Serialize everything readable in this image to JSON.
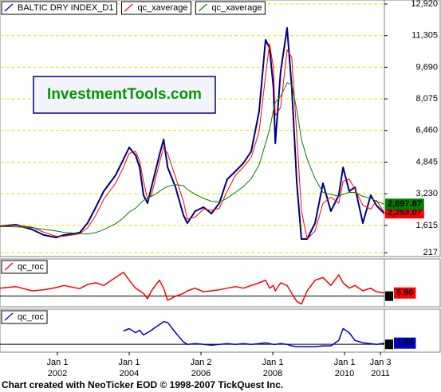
{
  "chart_data": [
    {
      "type": "line",
      "xlim": [
        2000.4,
        2011.11
      ],
      "ylim": [
        25,
        13123
      ],
      "grid": true,
      "tick_style": "text",
      "yticks": [
        {
          "value": 12920,
          "label": "12,920"
        },
        {
          "value": 11305,
          "label": "11,305"
        },
        {
          "value": 9690,
          "label": "9,690"
        },
        {
          "value": 8075,
          "label": "8,075"
        },
        {
          "value": 6460,
          "label": "6,460"
        },
        {
          "value": 4845,
          "label": "4,845"
        },
        {
          "value": 3230,
          "label": "3,230"
        },
        {
          "value": 1615,
          "label": "1,615"
        },
        217
      ],
      "x": [
        2000.4,
        2000.84,
        2001.29,
        2001.62,
        2001.96,
        2002.18,
        2002.62,
        2002.84,
        2003.07,
        2003.29,
        2003.62,
        2003.84,
        2004.0,
        2004.18,
        2004.29,
        2004.4,
        2004.51,
        2004.62,
        2004.73,
        2004.84,
        2004.96,
        2005.07,
        2005.29,
        2005.51,
        2005.62,
        2005.84,
        2006.07,
        2006.29,
        2006.51,
        2006.73,
        2006.96,
        2007.18,
        2007.4,
        2007.62,
        2007.8,
        2007.91,
        2008.02,
        2008.07,
        2008.22,
        2008.4,
        2008.53,
        2008.67,
        2008.8,
        2008.96,
        2009.18,
        2009.4,
        2009.62,
        2009.84,
        2009.96,
        2010.13,
        2010.29,
        2010.51,
        2010.73,
        2010.89,
        2011.11
      ],
      "series": [
        {
          "name": "BALTIC DRY INDEX_D1",
          "color": "#000080",
          "width": 2,
          "values": [
            1570,
            1652,
            1408,
            1123,
            1001,
            1123,
            1245,
            1733,
            2547,
            3360,
            4174,
            4987,
            5598,
            5191,
            4581,
            3157,
            2750,
            3564,
            4377,
            5191,
            6004,
            4581,
            3564,
            2140,
            1733,
            2343,
            2547,
            2221,
            2750,
            3970,
            4377,
            4784,
            5394,
            7428,
            11089,
            10683,
            8649,
            5801,
            9462,
            11700,
            8649,
            3767,
            920,
            920,
            1733,
            3767,
            2343,
            3157,
            4581,
            3360,
            3564,
            1733,
            3157,
            2628,
            2221
          ]
        },
        {
          "name": "qc_xaverage",
          "color": "#ff0000",
          "width": 1,
          "last_label": "2,253.07",
          "values": [
            1570,
            1610,
            1530,
            1265,
            1062,
            1062,
            1184,
            1489,
            2140,
            2953,
            3767,
            4580,
            5292,
            5394,
            4886,
            3869,
            2953,
            3157,
            3970,
            4784,
            5597,
            5292,
            4072,
            2852,
            1936,
            2038,
            2445,
            2384,
            2485,
            3360,
            4174,
            4580,
            5089,
            6411,
            9258,
            10886,
            9666,
            7225,
            7631,
            10581,
            10174,
            6208,
            2343,
            920,
            1326,
            2750,
            3055,
            2750,
            3869,
            3970,
            3462,
            2648,
            2445,
            2892,
            2253.07
          ]
        },
        {
          "name": "qc_xaverage",
          "color": "#008000",
          "width": 1,
          "last_label": "2,697.87",
          "values": [
            1560,
            1540,
            1500,
            1420,
            1330,
            1260,
            1200,
            1180,
            1250,
            1400,
            1700,
            2000,
            2300,
            2500,
            2700,
            2900,
            3000,
            3100,
            3200,
            3350,
            3500,
            3600,
            3700,
            3650,
            3450,
            3200,
            3000,
            2850,
            2800,
            3000,
            3300,
            3600,
            4000,
            4700,
            5800,
            6500,
            7500,
            7900,
            8200,
            8900,
            8800,
            7500,
            6000,
            5000,
            4000,
            3300,
            3200,
            3100,
            3200,
            3300,
            3300,
            3100,
            3000,
            2850,
            2697.87
          ]
        }
      ]
    },
    {
      "type": "line",
      "xlim": [
        2000.4,
        2011.11
      ],
      "ylim": [
        -20,
        70
      ],
      "tick_style": "box",
      "yticks": [
        0
      ],
      "x": [
        2000.4,
        2000.84,
        2001.29,
        2001.62,
        2001.96,
        2002.18,
        2002.62,
        2002.84,
        2003.07,
        2003.29,
        2003.62,
        2003.84,
        2004.0,
        2004.18,
        2004.29,
        2004.4,
        2004.51,
        2004.62,
        2004.73,
        2004.84,
        2004.96,
        2005.07,
        2005.29,
        2005.51,
        2005.62,
        2005.84,
        2006.07,
        2006.29,
        2006.51,
        2006.73,
        2006.96,
        2007.18,
        2007.4,
        2007.62,
        2007.8,
        2007.91,
        2008.02,
        2008.07,
        2008.22,
        2008.4,
        2008.53,
        2008.67,
        2008.8,
        2008.96,
        2009.18,
        2009.4,
        2009.62,
        2009.84,
        2009.96,
        2010.13,
        2010.29,
        2010.51,
        2010.73,
        2010.89,
        2011.11
      ],
      "series": [
        {
          "name": "qc_roc",
          "color": "#ff0000",
          "width": 1.5,
          "last_label": "5.90",
          "values": [
            15,
            18,
            10,
            12,
            16,
            20,
            14,
            22,
            25,
            20,
            35,
            45,
            30,
            15,
            10,
            5,
            -5,
            10,
            20,
            30,
            15,
            -8,
            0,
            5,
            10,
            15,
            8,
            10,
            12,
            15,
            18,
            15,
            20,
            25,
            30,
            15,
            20,
            10,
            25,
            20,
            5,
            -10,
            -15,
            10,
            30,
            35,
            20,
            40,
            25,
            15,
            20,
            10,
            15,
            8,
            5.9
          ]
        }
      ]
    },
    {
      "type": "line",
      "xlim": [
        2000.4,
        2011.11
      ],
      "ylim": [
        -10,
        45
      ],
      "tick_style": "box",
      "yticks": [
        0
      ],
      "x": [
        2000.4,
        2000.84,
        2001.29,
        2001.62,
        2001.96,
        2002.18,
        2002.62,
        2002.84,
        2003.07,
        2003.29,
        2003.62,
        2003.84,
        2004.0,
        2004.18,
        2004.29,
        2004.4,
        2004.51,
        2004.62,
        2004.73,
        2004.84,
        2004.96,
        2005.07,
        2005.29,
        2005.51,
        2005.62,
        2005.84,
        2006.07,
        2006.29,
        2006.51,
        2006.73,
        2006.96,
        2007.18,
        2007.4,
        2007.62,
        2007.8,
        2007.91,
        2008.02,
        2008.07,
        2008.22,
        2008.4,
        2008.53,
        2008.67,
        2008.8,
        2008.96,
        2009.18,
        2009.4,
        2009.62,
        2009.84,
        2009.96,
        2010.13,
        2010.29,
        2010.51,
        2010.73,
        2010.89,
        2011.11
      ],
      "series": [
        {
          "name": "qc_roc",
          "color": "#0000cc",
          "width": 1.5,
          "last_label": "1.55",
          "values": [
            null,
            null,
            null,
            null,
            null,
            null,
            null,
            null,
            null,
            null,
            null,
            17,
            20,
            15,
            18,
            12,
            15,
            18,
            22,
            25,
            29,
            28,
            15,
            3,
            0,
            1,
            0,
            -1,
            0,
            1,
            0,
            1,
            0,
            1,
            2,
            1,
            0,
            0,
            1,
            0,
            -2,
            -3,
            -3,
            -3,
            -3,
            -2,
            -2,
            5,
            20,
            15,
            5,
            2,
            1,
            0,
            1.55
          ]
        }
      ],
      "xticks": [
        {
          "value": 2002,
          "label": [
            "Jan 1",
            "2002"
          ]
        },
        {
          "value": 2004,
          "label": [
            "Jan 1",
            "2004"
          ]
        },
        {
          "value": 2006,
          "label": [
            "Jan 2",
            "2006"
          ]
        },
        {
          "value": 2008,
          "label": [
            "Jan 1",
            "2008"
          ]
        },
        {
          "value": 2010,
          "label": [
            "Jan 1",
            "2010"
          ]
        },
        {
          "value": 2011,
          "label": [
            "Jan 3",
            "2011"
          ]
        }
      ]
    }
  ],
  "watermark": "InvestmentTools.com",
  "footer": "Chart created with NeoTicker EOD © 1998-2007 TickQuest Inc."
}
